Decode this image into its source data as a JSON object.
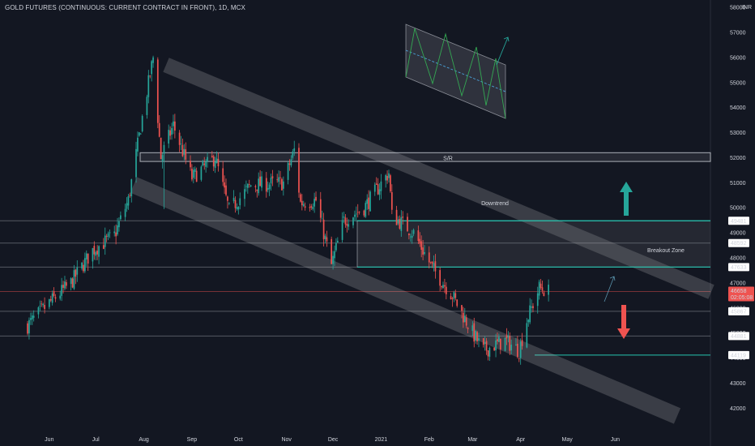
{
  "header": {
    "title": "GOLD FUTURES (CONTINUOUS: CURRENT CONTRACT IN FRONT), 1D, MCX",
    "currency": "INR"
  },
  "colors": {
    "background": "#131722",
    "up": "#26a69a",
    "down": "#ef5350",
    "teal_line": "#26c6b0",
    "band": "rgba(200,200,200,0.22)"
  },
  "chart_data": {
    "type": "candlestick",
    "x_ticks": [
      "Jun",
      "Jul",
      "Aug",
      "Sep",
      "Oct",
      "Nov",
      "Dec",
      "2021",
      "Feb",
      "Mar",
      "Apr",
      "May",
      "Jun"
    ],
    "y_ticks": [
      42000,
      43000,
      44000,
      45000,
      46000,
      47000,
      48000,
      49000,
      50000,
      51000,
      52000,
      53000,
      54000,
      55000,
      56000,
      57000,
      58000
    ],
    "ylim": [
      41700,
      58300
    ],
    "last_price": {
      "value": "46658",
      "countdown": "02:05:08"
    },
    "price_labels": [
      "49481",
      "48592",
      "47633",
      "45867",
      "44881",
      "44119"
    ],
    "annotations": {
      "sr_label": "S/R",
      "downtrend_label": "Downtrend",
      "breakout_label": "Breakout Zone"
    },
    "price_path": [
      {
        "date": "2020-05-18",
        "close": 45300
      },
      {
        "date": "2020-06-01",
        "close": 46200
      },
      {
        "date": "2020-06-15",
        "close": 47000
      },
      {
        "date": "2020-06-29",
        "close": 48300
      },
      {
        "date": "2020-07-13",
        "close": 48900
      },
      {
        "date": "2020-07-22",
        "close": 50300
      },
      {
        "date": "2020-07-31",
        "close": 53600
      },
      {
        "date": "2020-08-07",
        "close": 56000
      },
      {
        "date": "2020-08-12",
        "close": 52000
      },
      {
        "date": "2020-08-20",
        "close": 53300
      },
      {
        "date": "2020-09-01",
        "close": 51200
      },
      {
        "date": "2020-09-16",
        "close": 52000
      },
      {
        "date": "2020-09-25",
        "close": 49900
      },
      {
        "date": "2020-10-09",
        "close": 50900
      },
      {
        "date": "2020-10-30",
        "close": 51000
      },
      {
        "date": "2020-11-06",
        "close": 52300
      },
      {
        "date": "2020-11-10",
        "close": 50200
      },
      {
        "date": "2020-11-20",
        "close": 50300
      },
      {
        "date": "2020-11-30",
        "close": 47700
      },
      {
        "date": "2020-12-08",
        "close": 49500
      },
      {
        "date": "2020-12-21",
        "close": 50000
      },
      {
        "date": "2021-01-06",
        "close": 51400
      },
      {
        "date": "2021-01-08",
        "close": 49700
      },
      {
        "date": "2021-01-22",
        "close": 49000
      },
      {
        "date": "2021-02-03",
        "close": 47600
      },
      {
        "date": "2021-02-16",
        "close": 46500
      },
      {
        "date": "2021-03-01",
        "close": 45000
      },
      {
        "date": "2021-03-08",
        "close": 44300
      },
      {
        "date": "2021-03-22",
        "close": 44700
      },
      {
        "date": "2021-03-31",
        "close": 44300
      },
      {
        "date": "2021-04-05",
        "close": 45500
      },
      {
        "date": "2021-04-13",
        "close": 46800
      },
      {
        "date": "2021-04-19",
        "close": 46658
      }
    ]
  }
}
